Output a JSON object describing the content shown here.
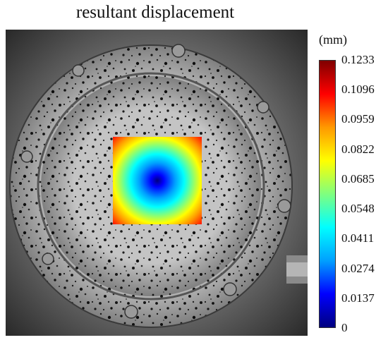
{
  "title": "resultant displacement",
  "colorbar": {
    "unit": "(mm)",
    "ticks": [
      "0.1233",
      "0.1096",
      "0.0959",
      "0.0822",
      "0.0685",
      "0.0548",
      "0.0411",
      "0.0274",
      "0.0137",
      "0"
    ],
    "colors": [
      "#00007f",
      "#0000ff",
      "#00a0ff",
      "#00ffff",
      "#7fff7f",
      "#ffff00",
      "#ff9900",
      "#ff0000",
      "#7f0000"
    ]
  }
}
